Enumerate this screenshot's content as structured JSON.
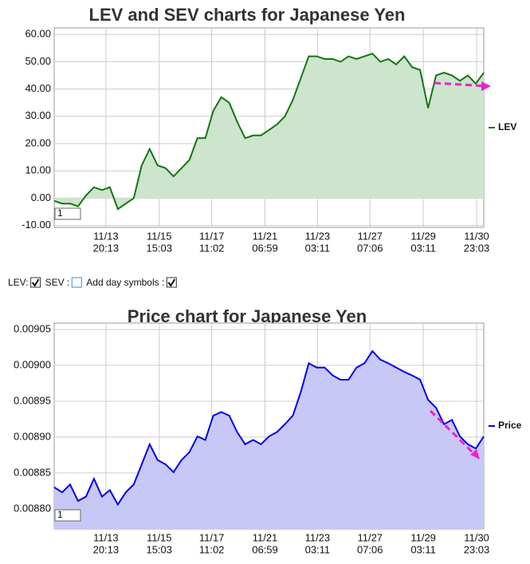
{
  "chart_data": [
    {
      "type": "area",
      "title": "LEV and SEV charts for Japanese Yen",
      "x": [
        0,
        1,
        2,
        3,
        4,
        5,
        6,
        7,
        8,
        9,
        10,
        11,
        12,
        13,
        14,
        15,
        16,
        17,
        18,
        19,
        20,
        21,
        22,
        23,
        24,
        25,
        26,
        27,
        28,
        29,
        30,
        31,
        32,
        33,
        34,
        35,
        36,
        37,
        38,
        39,
        40,
        41,
        42,
        43,
        44,
        45,
        46,
        47,
        48,
        49,
        50,
        51,
        52,
        53,
        54
      ],
      "series": [
        {
          "name": "LEV",
          "color": "#117711",
          "fill": "#cce5cc",
          "values": [
            -1,
            -2,
            -2,
            -3,
            1,
            4,
            3,
            4,
            -4,
            -2,
            0,
            12,
            18,
            12,
            11,
            8,
            11,
            14,
            22,
            22,
            32,
            37,
            35,
            28,
            22,
            23,
            23,
            25,
            27,
            30,
            36,
            44,
            52,
            52,
            51,
            51,
            50,
            52,
            51,
            52,
            53,
            50,
            51,
            49,
            52,
            48,
            47,
            33,
            45,
            46,
            45,
            43,
            45,
            42,
            46
          ]
        }
      ],
      "xlim": [
        0,
        54
      ],
      "xticks": [
        {
          "value": 6.5,
          "label": [
            "11/13",
            "20:13"
          ]
        },
        {
          "value": 13.2,
          "label": [
            "11/15",
            "15:03"
          ]
        },
        {
          "value": 19.8,
          "label": [
            "11/17",
            "11:02"
          ]
        },
        {
          "value": 26.5,
          "label": [
            "11/21",
            "06:59"
          ]
        },
        {
          "value": 33.1,
          "label": [
            "11/23",
            "03:11"
          ]
        },
        {
          "value": 39.7,
          "label": [
            "11/27",
            "07:06"
          ]
        },
        {
          "value": 46.4,
          "label": [
            "11/29",
            "03:11"
          ]
        },
        {
          "value": 53.1,
          "label": [
            "11/30",
            "23:03"
          ]
        }
      ],
      "ylim": [
        -10.7,
        62.4
      ],
      "yticks": [
        {
          "value": -10,
          "label": "-10.00"
        },
        {
          "value": 0,
          "label": "0.00"
        },
        {
          "value": 10,
          "label": "10.00"
        },
        {
          "value": 20,
          "label": "20.00"
        },
        {
          "value": 30,
          "label": "30.00"
        },
        {
          "value": 40,
          "label": "40.00"
        },
        {
          "value": 50,
          "label": "50.00"
        },
        {
          "value": 60,
          "label": "60.00"
        }
      ],
      "grid": true,
      "legend": "right",
      "input": "1"
    },
    {
      "type": "area",
      "title": "Price chart for Japanese Yen",
      "x": [
        0,
        1,
        2,
        3,
        4,
        5,
        6,
        7,
        8,
        9,
        10,
        11,
        12,
        13,
        14,
        15,
        16,
        17,
        18,
        19,
        20,
        21,
        22,
        23,
        24,
        25,
        26,
        27,
        28,
        29,
        30,
        31,
        32,
        33,
        34,
        35,
        36,
        37,
        38,
        39,
        40,
        41,
        42,
        43,
        44,
        45,
        46,
        47,
        48,
        49,
        50,
        51,
        52,
        53,
        54
      ],
      "series": [
        {
          "name": "Price",
          "color": "#0000ee",
          "fill": "#c8c8f6",
          "values": [
            0.00883,
            0.008823,
            0.008834,
            0.008811,
            0.008817,
            0.008842,
            0.008817,
            0.008826,
            0.008806,
            0.008823,
            0.008834,
            0.008862,
            0.00889,
            0.008868,
            0.008862,
            0.008851,
            0.008868,
            0.008879,
            0.008901,
            0.008896,
            0.00893,
            0.008935,
            0.00893,
            0.008907,
            0.00889,
            0.008896,
            0.00889,
            0.008901,
            0.008907,
            0.008918,
            0.00893,
            0.008963,
            0.009003,
            0.008997,
            0.008997,
            0.008986,
            0.00898,
            0.00898,
            0.008997,
            0.009003,
            0.00902,
            0.009008,
            0.009003,
            0.008997,
            0.008991,
            0.008986,
            0.00898,
            0.008952,
            0.008941,
            0.008918,
            0.008924,
            0.008901,
            0.00889,
            0.008884,
            0.008901
          ]
        }
      ],
      "xlim": [
        0,
        54
      ],
      "xticks": [
        {
          "value": 6.5,
          "label": [
            "11/13",
            "20:13"
          ]
        },
        {
          "value": 13.2,
          "label": [
            "11/15",
            "15:03"
          ]
        },
        {
          "value": 19.8,
          "label": [
            "11/17",
            "11:02"
          ]
        },
        {
          "value": 26.5,
          "label": [
            "11/21",
            "06:59"
          ]
        },
        {
          "value": 33.1,
          "label": [
            "11/23",
            "03:11"
          ]
        },
        {
          "value": 39.7,
          "label": [
            "11/27",
            "07:06"
          ]
        },
        {
          "value": 46.4,
          "label": [
            "11/29",
            "03:11"
          ]
        },
        {
          "value": 53.1,
          "label": [
            "11/30",
            "23:03"
          ]
        }
      ],
      "ylim": [
        0.008772,
        0.009059
      ],
      "yticks": [
        {
          "value": 0.0088,
          "label": "0.00880"
        },
        0.00885,
        {
          "value": 0.0089,
          "label": "0.00890"
        },
        0.00895,
        {
          "value": 0.009,
          "label": "0.00900"
        },
        0.00905
      ],
      "grid": true,
      "legend": "right",
      "input": "1"
    }
  ],
  "controls": [
    {
      "label": "LEV:",
      "checked": true
    },
    {
      "label": "SEV :",
      "checked": false
    },
    {
      "label": "Add day symbols :",
      "checked": true
    }
  ]
}
